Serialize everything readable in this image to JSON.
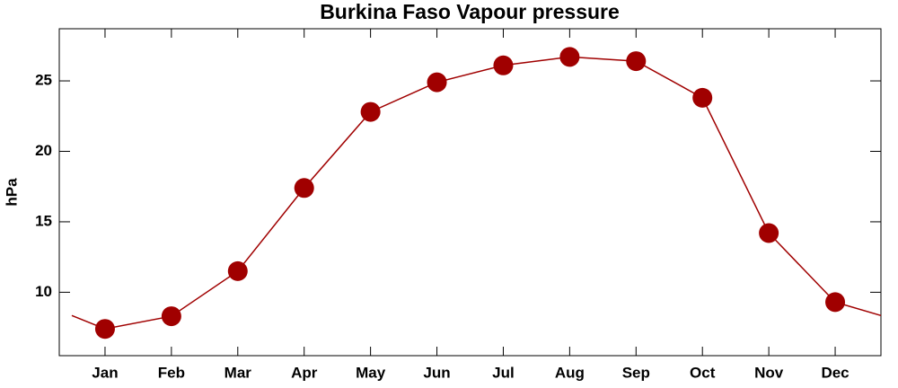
{
  "chart_data": {
    "type": "line",
    "title": "Burkina Faso Vapour pressure",
    "ylabel": "hPa",
    "categories": [
      "Jan",
      "Feb",
      "Mar",
      "Apr",
      "May",
      "Jun",
      "Jul",
      "Aug",
      "Sep",
      "Oct",
      "Nov",
      "Dec"
    ],
    "values": [
      7.4,
      8.3,
      11.5,
      17.4,
      22.8,
      24.9,
      26.1,
      26.7,
      26.4,
      23.8,
      14.2,
      9.3
    ],
    "color": "#a00000",
    "ylim": [
      5.5,
      28.7
    ],
    "yticks": [
      10,
      15,
      20,
      25
    ]
  }
}
